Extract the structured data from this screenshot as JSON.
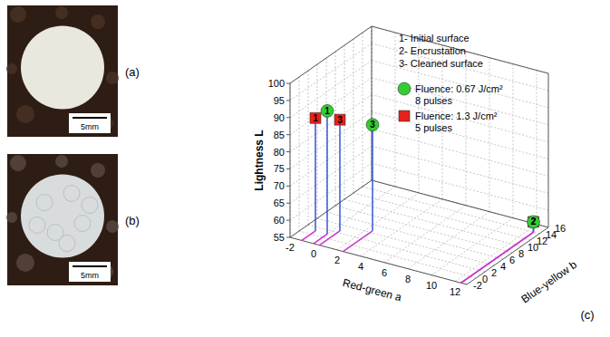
{
  "panels": [
    {
      "label": "(a)",
      "scale_bar": "5mm"
    },
    {
      "label": "(b)",
      "scale_bar": "5mm"
    }
  ],
  "chart_data": {
    "type": "scatter3d",
    "panel_label": "(c)",
    "xlabel": "Red-green a",
    "ylabel": "Blue-yellow b",
    "zlabel": "Lightness L",
    "xlim": [
      -2,
      13
    ],
    "xticks": [
      -2,
      0,
      2,
      4,
      6,
      8,
      10,
      12
    ],
    "ylim": [
      -2,
      16
    ],
    "yticks": [
      -2,
      0,
      2,
      4,
      6,
      8,
      10,
      12,
      14,
      16
    ],
    "zlim": [
      55,
      100
    ],
    "zticks": [
      55,
      60,
      65,
      70,
      75,
      80,
      85,
      90,
      95,
      100
    ],
    "grid": true,
    "legend": "top right",
    "categories": [
      "1",
      "2",
      "3"
    ],
    "category_legend": [
      "1- Initial surface",
      "2- Encrustation",
      "3- Cleaned surface"
    ],
    "series": [
      {
        "name": "Fluence: 1.3 J/cm²",
        "pulses": "5 pulses",
        "color": "#e8201c",
        "marker": "square",
        "x": [
          -1,
          12.5,
          0.5
        ],
        "y": [
          1,
          14,
          2.5
        ],
        "z": [
          88,
          58,
          87.5
        ]
      },
      {
        "name": "Fluence: 0.67 J/cm²",
        "pulses": "8 pulses",
        "color": "#33cc33",
        "marker": "circle",
        "x": [
          0,
          12.5,
          2.5
        ],
        "y": [
          1,
          14,
          4.5
        ],
        "z": [
          91,
          58,
          86
        ]
      }
    ]
  }
}
